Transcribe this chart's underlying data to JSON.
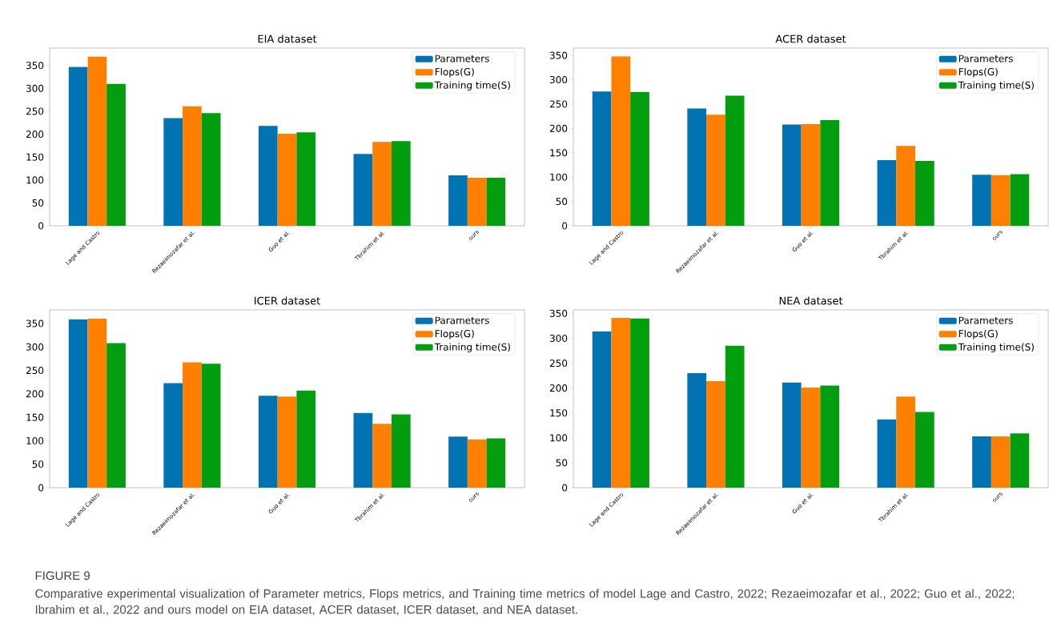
{
  "chart_data": [
    {
      "type": "bar",
      "title": "EIA dataset",
      "categories": [
        "Lage and Castro",
        "Rezaeimozafar et al.",
        "Guo et al.",
        "Tbrahim et al.",
        "ours"
      ],
      "ylim": [
        0,
        388
      ],
      "yticks": [
        0,
        50,
        100,
        150,
        200,
        250,
        300,
        350
      ],
      "legend": "top right",
      "series": [
        {
          "name": "Parameters",
          "color": "#0173b2",
          "values": [
            347,
            235,
            218,
            157,
            110
          ]
        },
        {
          "name": "Flops(G)",
          "color": "#ff7f00",
          "values": [
            369,
            261,
            201,
            183,
            105
          ]
        },
        {
          "name": "Training time(S)",
          "color": "#029e0f",
          "values": [
            310,
            246,
            204,
            185,
            105
          ]
        }
      ]
    },
    {
      "type": "bar",
      "title": "ACER dataset",
      "categories": [
        "Lage and Castro",
        "Rezaeimozafar et al.",
        "Guo et al.",
        "Tbrahim et al.",
        "ours"
      ],
      "ylim": [
        0,
        365
      ],
      "yticks": [
        0,
        50,
        100,
        150,
        200,
        250,
        300,
        350
      ],
      "legend": "top right",
      "series": [
        {
          "name": "Parameters",
          "color": "#0173b2",
          "values": [
            276,
            241,
            208,
            135,
            105
          ]
        },
        {
          "name": "Flops(G)",
          "color": "#ff7f00",
          "values": [
            348,
            228,
            209,
            164,
            104
          ]
        },
        {
          "name": "Training time(S)",
          "color": "#029e0f",
          "values": [
            275,
            267,
            217,
            133,
            106
          ]
        }
      ]
    },
    {
      "type": "bar",
      "title": "ICER dataset",
      "categories": [
        "Lage and Castro",
        "Rezaeimozafar et al.",
        "Guo et al.",
        "Tbrahim et al.",
        "ours"
      ],
      "ylim": [
        0,
        379
      ],
      "yticks": [
        0,
        50,
        100,
        150,
        200,
        250,
        300,
        350
      ],
      "legend": "top right",
      "series": [
        {
          "name": "Parameters",
          "color": "#0173b2",
          "values": [
            359,
            223,
            196,
            159,
            109
          ]
        },
        {
          "name": "Flops(G)",
          "color": "#ff7f00",
          "values": [
            360,
            267,
            194,
            136,
            103
          ]
        },
        {
          "name": "Training time(S)",
          "color": "#029e0f",
          "values": [
            308,
            264,
            207,
            156,
            105
          ]
        }
      ]
    },
    {
      "type": "bar",
      "title": "NEA dataset",
      "categories": [
        "Lage and Castro",
        "Rezaeimozafar et al.",
        "Guo et al.",
        "Tbrahim et al.",
        "ours"
      ],
      "ylim": [
        0,
        357
      ],
      "yticks": [
        0,
        50,
        100,
        150,
        200,
        250,
        300,
        350
      ],
      "legend": "top right",
      "series": [
        {
          "name": "Parameters",
          "color": "#0173b2",
          "values": [
            314,
            230,
            211,
            137,
            103
          ]
        },
        {
          "name": "Flops(G)",
          "color": "#ff7f00",
          "values": [
            341,
            214,
            201,
            183,
            103
          ]
        },
        {
          "name": "Training time(S)",
          "color": "#029e0f",
          "values": [
            340,
            285,
            205,
            152,
            109
          ]
        }
      ],
      "annotations": [
        "FIGURE 9",
        "Comparative experimental visualization of Parameter metrics, Flops metrics, and Training time metrics of model Lage and Castro, 2022; Rezaeimozafar et al., 2022; Guo et al., 2022; Ibrahim et al., 2022 and ours model on EIA dataset, ACER dataset, ICER dataset, and NEA dataset."
      ]
    }
  ]
}
